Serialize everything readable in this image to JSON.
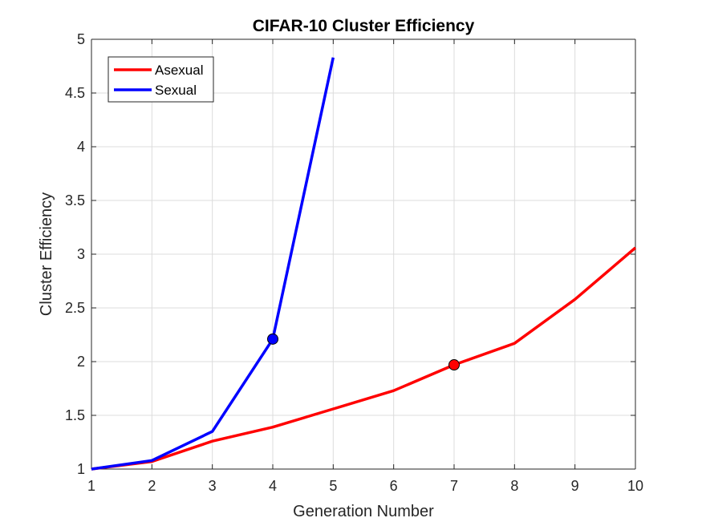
{
  "chart_data": {
    "type": "line",
    "title": "CIFAR-10 Cluster Efficiency",
    "xlabel": "Generation Number",
    "ylabel": "Cluster Efficiency",
    "xlim": [
      1,
      10
    ],
    "ylim": [
      1,
      5
    ],
    "xticks": [
      1,
      2,
      3,
      4,
      5,
      6,
      7,
      8,
      9,
      10
    ],
    "yticks": [
      1,
      1.5,
      2,
      2.5,
      3,
      3.5,
      4,
      4.5,
      5
    ],
    "xtick_labels": [
      "1",
      "2",
      "3",
      "4",
      "5",
      "6",
      "7",
      "8",
      "9",
      "10"
    ],
    "ytick_labels": [
      "1",
      "1.5",
      "2",
      "2.5",
      "3",
      "3.5",
      "4",
      "4.5",
      "5"
    ],
    "grid": true,
    "legend_position": "top-left",
    "series": [
      {
        "name": "Asexual",
        "color": "#ff0000",
        "x": [
          1,
          2,
          3,
          4,
          5,
          6,
          7,
          8,
          9,
          10
        ],
        "y": [
          1.0,
          1.07,
          1.26,
          1.39,
          1.56,
          1.73,
          1.97,
          2.17,
          2.58,
          3.06
        ],
        "marker": {
          "x": 7,
          "y": 1.97
        }
      },
      {
        "name": "Sexual",
        "color": "#0000ff",
        "x": [
          1,
          2,
          3,
          4,
          5
        ],
        "y": [
          1.0,
          1.08,
          1.35,
          2.21,
          4.83
        ],
        "marker": {
          "x": 4,
          "y": 2.21
        }
      }
    ]
  }
}
